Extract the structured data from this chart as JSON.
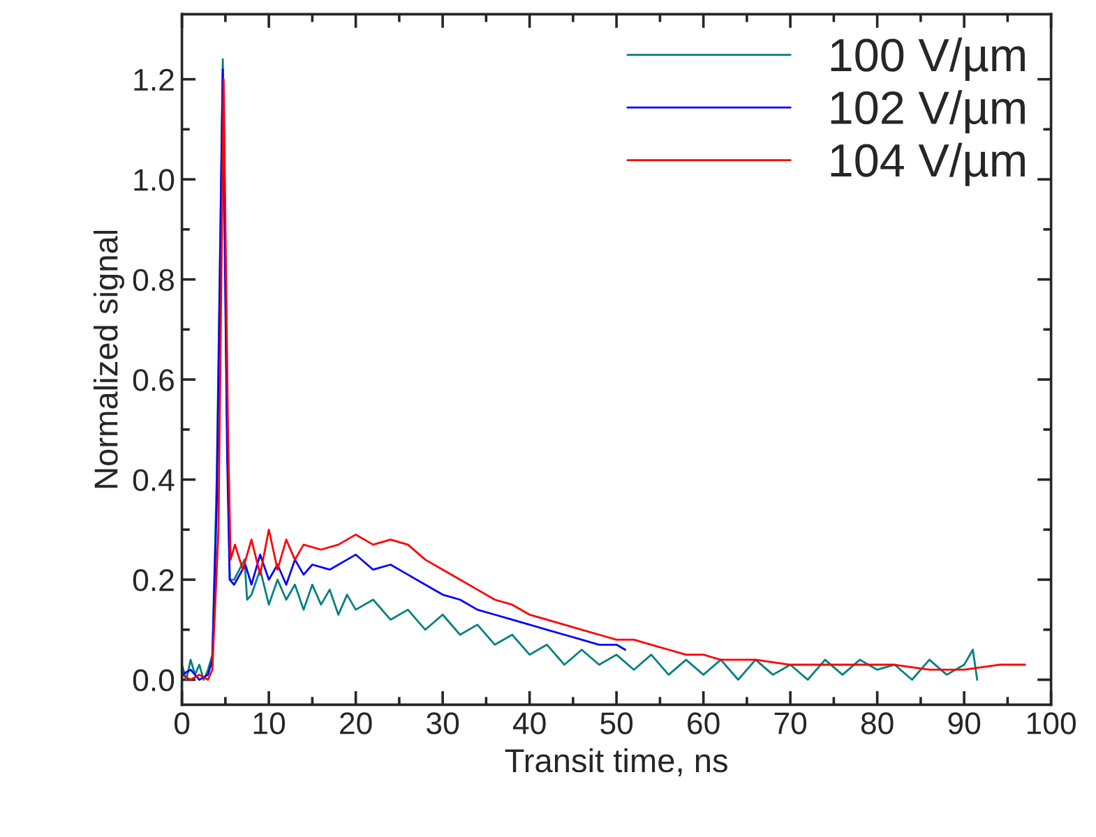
{
  "chart_data": {
    "type": "line",
    "xlabel": "Transit time, ns",
    "ylabel": "Normalized signal",
    "xlim": [
      0,
      100
    ],
    "ylim": [
      -0.05,
      1.33
    ],
    "xticks": [
      0,
      10,
      20,
      30,
      40,
      50,
      60,
      70,
      80,
      90,
      100
    ],
    "yticks": [
      {
        "value": 0,
        "label": "0.0"
      },
      0.2,
      0.4,
      0.6,
      0.8,
      {
        "value": 1,
        "label": "1.0"
      },
      1.2
    ],
    "grid": false,
    "legend": "top right",
    "marker": "none",
    "line_style": "solid",
    "series": [
      {
        "name": "100 V/µm",
        "color": "#008080",
        "x": [
          0,
          0.5,
          1,
          1.5,
          2,
          2.5,
          3,
          3.5,
          4,
          4.7,
          5.2,
          5.5,
          6,
          7.2,
          7.5,
          8,
          9,
          10,
          11,
          12,
          13,
          14,
          15,
          16,
          17,
          18,
          19,
          20,
          22,
          24,
          26,
          28,
          30,
          32,
          34,
          36,
          38,
          40,
          42,
          44,
          46,
          48,
          50,
          52,
          54,
          56,
          58,
          60,
          62,
          64,
          66,
          68,
          70,
          72,
          74,
          76,
          78,
          80,
          82,
          84,
          86,
          88,
          90,
          91,
          91.5
        ],
        "values": [
          0.03,
          0.0,
          0.04,
          0.01,
          0.03,
          0.0,
          0.02,
          0.05,
          0.4,
          1.24,
          0.5,
          0.2,
          0.2,
          0.24,
          0.16,
          0.17,
          0.22,
          0.15,
          0.2,
          0.16,
          0.19,
          0.14,
          0.19,
          0.15,
          0.18,
          0.13,
          0.17,
          0.14,
          0.16,
          0.12,
          0.14,
          0.1,
          0.13,
          0.09,
          0.11,
          0.07,
          0.09,
          0.05,
          0.07,
          0.03,
          0.06,
          0.03,
          0.05,
          0.02,
          0.05,
          0.01,
          0.04,
          0.01,
          0.04,
          0.0,
          0.04,
          0.01,
          0.03,
          0.0,
          0.04,
          0.01,
          0.04,
          0.02,
          0.03,
          0.0,
          0.04,
          0.01,
          0.03,
          0.06,
          0.0
        ]
      },
      {
        "name": "102 V/µm",
        "color": "#0000ff",
        "x": [
          0,
          1,
          2,
          3,
          3.5,
          4,
          4.7,
          5.2,
          5.5,
          6,
          7.3,
          8,
          9,
          10,
          11,
          12,
          13,
          14,
          15,
          17,
          19,
          20,
          22,
          24,
          26,
          28,
          30,
          32,
          34,
          36,
          38,
          40,
          42,
          44,
          46,
          48,
          50,
          51
        ],
        "values": [
          0.01,
          0.02,
          0.0,
          0.01,
          0.04,
          0.35,
          1.22,
          0.45,
          0.2,
          0.19,
          0.23,
          0.19,
          0.25,
          0.2,
          0.23,
          0.19,
          0.24,
          0.21,
          0.23,
          0.22,
          0.24,
          0.25,
          0.22,
          0.23,
          0.21,
          0.19,
          0.17,
          0.16,
          0.14,
          0.13,
          0.12,
          0.11,
          0.1,
          0.09,
          0.08,
          0.07,
          0.07,
          0.06
        ]
      },
      {
        "name": "104 V/µm",
        "color": "#ff0000",
        "x": [
          0,
          1,
          2,
          3,
          3.5,
          4.2,
          4.8,
          5.3,
          5.6,
          6.1,
          7,
          8,
          9,
          10,
          11,
          12,
          13,
          14,
          16,
          18,
          20,
          22,
          24,
          26,
          28,
          30,
          32,
          34,
          36,
          38,
          40,
          42,
          44,
          46,
          48,
          50,
          52,
          54,
          56,
          58,
          60,
          62,
          64,
          66,
          70,
          74,
          78,
          82,
          86,
          90,
          94,
          97
        ],
        "values": [
          0.01,
          0.0,
          0.01,
          0.0,
          0.02,
          0.3,
          1.2,
          0.5,
          0.24,
          0.27,
          0.22,
          0.28,
          0.21,
          0.3,
          0.22,
          0.28,
          0.24,
          0.27,
          0.26,
          0.27,
          0.29,
          0.27,
          0.28,
          0.27,
          0.24,
          0.22,
          0.2,
          0.18,
          0.16,
          0.15,
          0.13,
          0.12,
          0.11,
          0.1,
          0.09,
          0.08,
          0.08,
          0.07,
          0.06,
          0.05,
          0.05,
          0.04,
          0.04,
          0.04,
          0.03,
          0.03,
          0.03,
          0.03,
          0.02,
          0.02,
          0.03,
          0.03
        ]
      }
    ]
  }
}
